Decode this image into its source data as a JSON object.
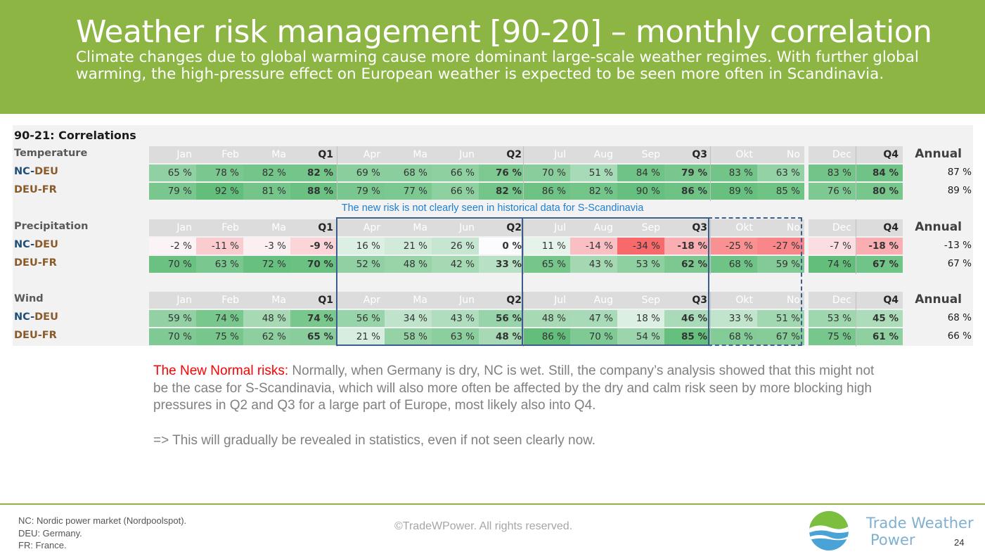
{
  "header": {
    "title": "Weather risk management [90-20] – monthly correlation",
    "subtitle": "Climate changes due to global warming cause more dominant large-scale weather regimes. With further global warming, the high-pressure effect on European weather is expected to be seen more often in Scandinavia."
  },
  "table": {
    "title": "90-21: Correlations",
    "annual_label": "Annual",
    "note": "The new risk is not clearly seen in historical data for S-Scandinavia",
    "row_labels": {
      "nc": "NC",
      "deu": "DEU",
      "fr": "FR",
      "dash": "-"
    },
    "sections": [
      {
        "name": "Temperature",
        "headers": [
          "Jan",
          "Feb",
          "Ma",
          "Q1",
          "Apr",
          "Ma",
          "Jun",
          "Q2",
          "Jul",
          "Aug",
          "Sep",
          "Q3",
          "Okt",
          "No",
          "Dec",
          "Q4"
        ],
        "rows": [
          {
            "values": [
              "65 %",
              "78 %",
              "82 %",
              "82 %",
              "69 %",
              "68 %",
              "66 %",
              "76 %",
              "70 %",
              "51 %",
              "84 %",
              "79 %",
              "83 %",
              "63 %",
              "83 %",
              "84 %"
            ],
            "annual": "87 %"
          },
          {
            "values": [
              "79 %",
              "92 %",
              "81 %",
              "88 %",
              "79 %",
              "77 %",
              "66 %",
              "82 %",
              "86 %",
              "82 %",
              "90 %",
              "86 %",
              "89 %",
              "85 %",
              "76 %",
              "80 %"
            ],
            "annual": "89 %"
          }
        ]
      },
      {
        "name": "Precipitation",
        "headers": [
          "Jan",
          "Feb",
          "Ma",
          "Q1",
          "Apr",
          "Ma",
          "Jun",
          "Q2",
          "Jul",
          "Aug",
          "Sep",
          "Q3",
          "Okt",
          "No",
          "Dec",
          "Q4"
        ],
        "rows": [
          {
            "values": [
              "-2 %",
              "-11 %",
              "-3 %",
              "-9 %",
              "16 %",
              "21 %",
              "26 %",
              "0 %",
              "11 %",
              "-14 %",
              "-34 %",
              "-18 %",
              "-25 %",
              "-27 %",
              "-7 %",
              "-18 %"
            ],
            "annual": "-13 %"
          },
          {
            "values": [
              "70 %",
              "63 %",
              "72 %",
              "70 %",
              "52 %",
              "48 %",
              "42 %",
              "33 %",
              "65 %",
              "43 %",
              "53 %",
              "62 %",
              "68 %",
              "59 %",
              "74 %",
              "67 %"
            ],
            "annual": "67 %"
          }
        ]
      },
      {
        "name": "Wind",
        "headers": [
          "Jan",
          "Feb",
          "Ma",
          "Q1",
          "Apr",
          "Ma",
          "Jun",
          "Q2",
          "Jul",
          "Aug",
          "Sep",
          "Q3",
          "Okt",
          "No",
          "Dec",
          "Q4"
        ],
        "rows": [
          {
            "values": [
              "59 %",
              "74 %",
              "48 %",
              "74 %",
              "56 %",
              "34 %",
              "43 %",
              "56 %",
              "48 %",
              "47 %",
              "18 %",
              "46 %",
              "33 %",
              "51 %",
              "53 %",
              "45 %"
            ],
            "annual": "68 %"
          },
          {
            "values": [
              "70 %",
              "75 %",
              "62 %",
              "65 %",
              "21 %",
              "58 %",
              "63 %",
              "48 %",
              "86 %",
              "70 %",
              "54 %",
              "85 %",
              "68 %",
              "67 %",
              "75 %",
              "61 %"
            ],
            "annual": "66 %"
          }
        ]
      }
    ]
  },
  "body": {
    "lead": "The New Normal risks:",
    "text": " Normally, when Germany is dry, NC is wet. Still, the company’s analysis showed that this might not be the case for S-Scandinavia, which will also more often be affected by the dry and calm risk seen by more blocking high pressures in Q2 and Q3 for a large part of Europe, most likely also into Q4.",
    "conclusion": "=> This will gradually be revealed in statistics, even if not seen clearly now."
  },
  "footer": {
    "notes": [
      "NC: Nordic power market (Nordpoolspot).",
      "DEU: Germany.",
      "FR: France."
    ],
    "copyright": "©TradeWPower. All rights reserved.",
    "brand_line1": "Trade Weather",
    "brand_line2": "Power",
    "page_number": "24"
  },
  "colors": {
    "header_green": "#8cb543",
    "positive_strong": "#63be7b",
    "negative_strong": "#f8696b",
    "neutral": "#fcfcff",
    "box_blue": "#3a5c8f",
    "note_blue": "#1f7fd0",
    "lead_red": "#ff0000"
  }
}
